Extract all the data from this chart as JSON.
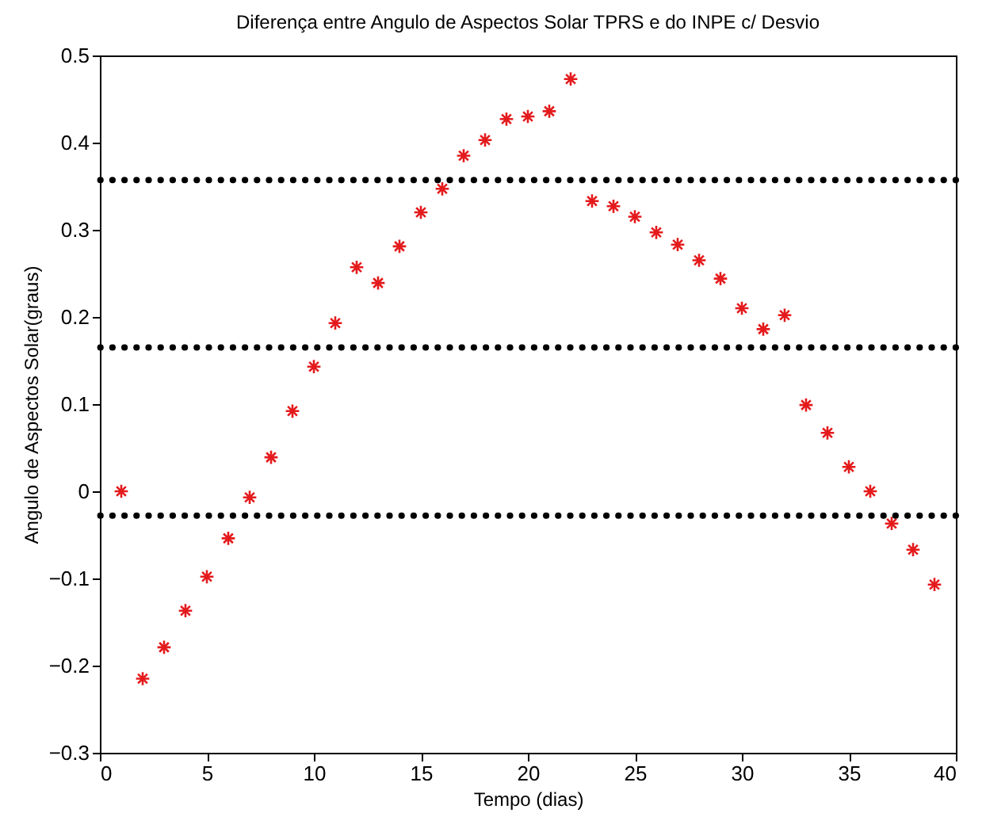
{
  "chart_data": {
    "type": "scatter",
    "title": "Diferença entre Angulo de Aspectos Solar TPRS e do INPE c/ Desvio",
    "xlabel": "Tempo (dias)",
    "ylabel": "Angulo de Aspectos Solar(graus)",
    "x": [
      1,
      2,
      3,
      4,
      5,
      6,
      7,
      8,
      9,
      10,
      11,
      12,
      13,
      14,
      15,
      16,
      17,
      18,
      19,
      20,
      21,
      22,
      23,
      24,
      25,
      26,
      27,
      28,
      29,
      30,
      31,
      32,
      33,
      34,
      35,
      36,
      37,
      38,
      39
    ],
    "series": [
      {
        "color": "#e41a1c",
        "values": [
          0.0,
          -0.215,
          -0.179,
          -0.137,
          -0.098,
          -0.054,
          -0.007,
          0.039,
          0.092,
          0.143,
          0.193,
          0.257,
          0.239,
          0.281,
          0.32,
          0.347,
          0.385,
          0.403,
          0.427,
          0.43,
          0.436,
          0.473,
          0.333,
          0.327,
          0.315,
          0.297,
          0.283,
          0.265,
          0.244,
          0.21,
          0.186,
          0.202,
          0.099,
          0.067,
          0.028,
          0.0,
          -0.037,
          -0.067,
          -0.107
        ]
      }
    ],
    "marker": "cross",
    "xlim": [
      0,
      40
    ],
    "ylim": [
      -0.3,
      0.5
    ],
    "xticks": [
      0,
      5,
      10,
      15,
      20,
      25,
      30,
      35,
      40
    ],
    "yticks": [
      -0.3,
      -0.2,
      -0.1,
      0,
      0.1,
      0.2,
      0.3,
      0.4,
      0.5
    ],
    "ref_lines": [
      {
        "axis": "y",
        "value": 0.357,
        "color": "#000000",
        "line_style": "dotted"
      },
      {
        "axis": "y",
        "value": 0.165,
        "color": "#000000",
        "line_style": "dotted"
      },
      {
        "axis": "y",
        "value": -0.028,
        "color": "#000000",
        "line_style": "dotted"
      }
    ]
  }
}
